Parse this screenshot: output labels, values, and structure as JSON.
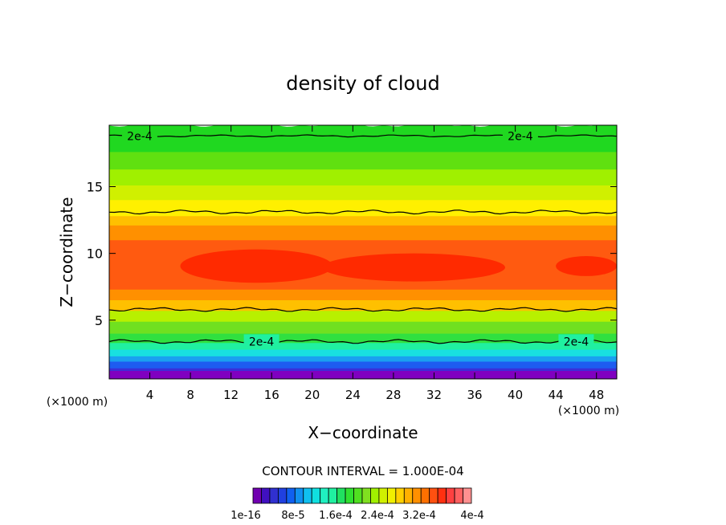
{
  "chart_data": {
    "type": "heatmap",
    "title": "density of cloud",
    "xlabel": "X−coordinate",
    "ylabel": "Z−coordinate",
    "x_unit_left": "(×1000 m)",
    "x_unit_right": "(×1000 m)",
    "xlim": [
      0,
      50
    ],
    "ylim": [
      0.6,
      19.6
    ],
    "x_ticks": [
      4,
      8,
      12,
      16,
      20,
      24,
      28,
      32,
      36,
      40,
      44,
      48
    ],
    "y_ticks": [
      5,
      10,
      15
    ],
    "contour_interval_text": "CONTOUR INTERVAL = 1.000E-04",
    "contour_labels": [
      {
        "text": "2e-4",
        "x": 3,
        "z": 18.8
      },
      {
        "text": "2e-4",
        "x": 40.5,
        "z": 18.8
      },
      {
        "text": "2e-4",
        "x": 15,
        "z": 3.4
      },
      {
        "text": "2e-4",
        "x": 46,
        "z": 3.4
      }
    ],
    "layers": [
      {
        "z_bottom": 0.6,
        "z_top": 1.2,
        "color": "#8000c0"
      },
      {
        "z_bottom": 1.2,
        "z_top": 1.7,
        "color": "#3a2fd8"
      },
      {
        "z_bottom": 1.7,
        "z_top": 2.2,
        "color": "#1e5cf0"
      },
      {
        "z_bottom": 2.2,
        "z_top": 2.6,
        "color": "#1aa0f0"
      },
      {
        "z_bottom": 2.6,
        "z_top": 3.1,
        "color": "#18e0e0"
      },
      {
        "z_bottom": 3.1,
        "z_top": 3.6,
        "color": "#20f0a0"
      },
      {
        "z_bottom": 3.6,
        "z_top": 4.3,
        "color": "#30e040"
      },
      {
        "z_bottom": 4.3,
        "z_top": 5.2,
        "color": "#70e020"
      },
      {
        "z_bottom": 5.2,
        "z_top": 6.0,
        "color": "#b8f000"
      },
      {
        "z_bottom": 6.0,
        "z_top": 6.8,
        "color": "#ffc000"
      },
      {
        "z_bottom": 6.8,
        "z_top": 7.6,
        "color": "#ff9000"
      },
      {
        "z_bottom": 7.6,
        "z_top": 11.3,
        "color": "#ff5a10"
      },
      {
        "z_bottom": 11.3,
        "z_top": 12.4,
        "color": "#ff9000"
      },
      {
        "z_bottom": 12.4,
        "z_top": 13.1,
        "color": "#ffc000"
      },
      {
        "z_bottom": 13.1,
        "z_top": 14.3,
        "color": "#fff000"
      },
      {
        "z_bottom": 14.3,
        "z_top": 15.4,
        "color": "#d0f000"
      },
      {
        "z_bottom": 15.4,
        "z_top": 16.6,
        "color": "#a0f000"
      },
      {
        "z_bottom": 16.6,
        "z_top": 17.9,
        "color": "#60e010"
      },
      {
        "z_bottom": 17.9,
        "z_top": 19.6,
        "color": "#20d820"
      }
    ],
    "core_regions": [
      {
        "x_start": 7,
        "x_end": 22,
        "z_bottom": 7.8,
        "z_top": 10.3,
        "color": "#ff2a00"
      },
      {
        "x_start": 21,
        "x_end": 39,
        "z_bottom": 7.9,
        "z_top": 10.0,
        "color": "#ff2a00"
      },
      {
        "x_start": 44,
        "x_end": 50,
        "z_bottom": 8.3,
        "z_top": 9.8,
        "color": "#ff2a00"
      }
    ],
    "contour_lines_z": [
      18.8,
      13.1,
      5.8,
      3.4
    ],
    "colorbar": {
      "colors": [
        "#7000b0",
        "#4010c0",
        "#3030d0",
        "#2040e0",
        "#1060f0",
        "#1090f0",
        "#10c0f0",
        "#10e0e0",
        "#20f0c0",
        "#20f0a0",
        "#20e060",
        "#30e030",
        "#50e020",
        "#80e020",
        "#a0f000",
        "#d0f000",
        "#f0f000",
        "#ffd000",
        "#ffb000",
        "#ff9000",
        "#ff7000",
        "#ff5010",
        "#ff3010",
        "#ff4040",
        "#ff6060",
        "#ff9090"
      ],
      "labels": [
        "1e-16",
        "8e-5",
        "1.6e-4",
        "2.4e-4",
        "3.2e-4",
        "4e-4"
      ]
    }
  }
}
